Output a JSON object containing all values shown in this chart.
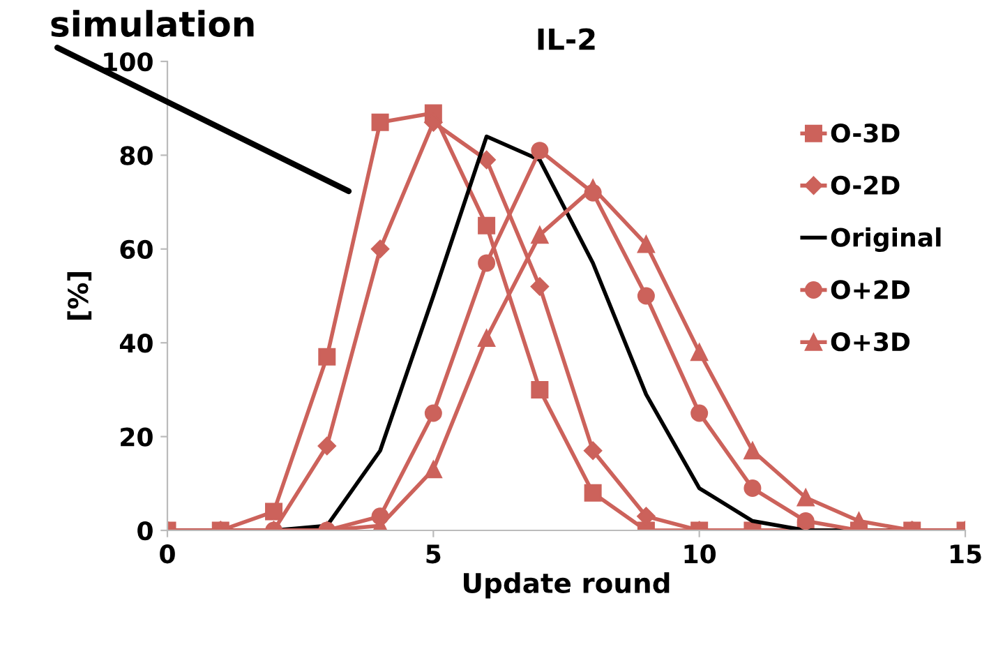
{
  "chart_data": {
    "type": "line",
    "title": "IL-2",
    "xlabel": "Update round",
    "ylabel": "[%]",
    "annotations": [
      "simulation"
    ],
    "x": [
      0,
      1,
      2,
      3,
      4,
      5,
      6,
      7,
      8,
      9,
      10,
      11,
      12,
      13,
      14,
      15
    ],
    "series": [
      {
        "name": "O-3D",
        "color": "#cc625b",
        "marker": "square",
        "values": [
          0,
          0,
          4,
          37,
          87,
          89,
          65,
          30,
          8,
          0,
          0,
          0,
          0,
          0,
          0,
          0
        ]
      },
      {
        "name": "O-2D",
        "color": "#cc625b",
        "marker": "diamond",
        "values": [
          0,
          0,
          0,
          18,
          60,
          87,
          79,
          52,
          17,
          3,
          0,
          0,
          0,
          0,
          0,
          0
        ]
      },
      {
        "name": "Original",
        "color": "#000000",
        "marker": "none",
        "values": [
          0,
          0,
          0,
          1,
          17,
          50,
          84,
          79,
          57,
          29,
          9,
          2,
          0,
          0,
          0,
          0
        ]
      },
      {
        "name": "O+2D",
        "color": "#cc625b",
        "marker": "circle",
        "values": [
          0,
          0,
          0,
          0,
          3,
          25,
          57,
          81,
          72,
          50,
          25,
          9,
          2,
          0,
          0,
          0
        ]
      },
      {
        "name": "O+3D",
        "color": "#cc625b",
        "marker": "triangle",
        "values": [
          0,
          0,
          0,
          0,
          1,
          13,
          41,
          63,
          73,
          61,
          38,
          17,
          7,
          2,
          0,
          0
        ]
      }
    ],
    "xlim": [
      0,
      15
    ],
    "xticks": [
      0,
      5,
      10,
      15
    ],
    "ylim": [
      0,
      100
    ],
    "yticks": [
      0,
      20,
      40,
      60,
      80,
      100
    ],
    "grid": false,
    "legend": "right"
  }
}
